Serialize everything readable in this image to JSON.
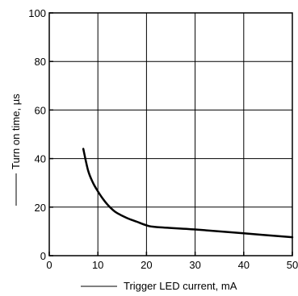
{
  "chart_data": {
    "type": "line",
    "title": "",
    "xlabel": "Trigger LED current, mA",
    "ylabel": "Turn on time, µs",
    "xlim": [
      0,
      50
    ],
    "ylim": [
      0,
      100
    ],
    "x_ticks": [
      "0",
      "10",
      "20",
      "30",
      "40",
      "50"
    ],
    "y_ticks": [
      "0",
      "20",
      "40",
      "60",
      "80",
      "100"
    ],
    "grid": true,
    "series": [
      {
        "x": [
          7,
          8,
          9,
          10,
          11,
          12,
          13,
          14,
          16,
          18,
          20,
          22,
          30,
          40,
          50
        ],
        "y": [
          44,
          35,
          30,
          26.5,
          23.5,
          21,
          19,
          17.5,
          15.5,
          14,
          12.5,
          11.8,
          10.8,
          9.2,
          7.6
        ]
      }
    ],
    "colors": {
      "line": "#000000",
      "grid": "#000000"
    }
  }
}
